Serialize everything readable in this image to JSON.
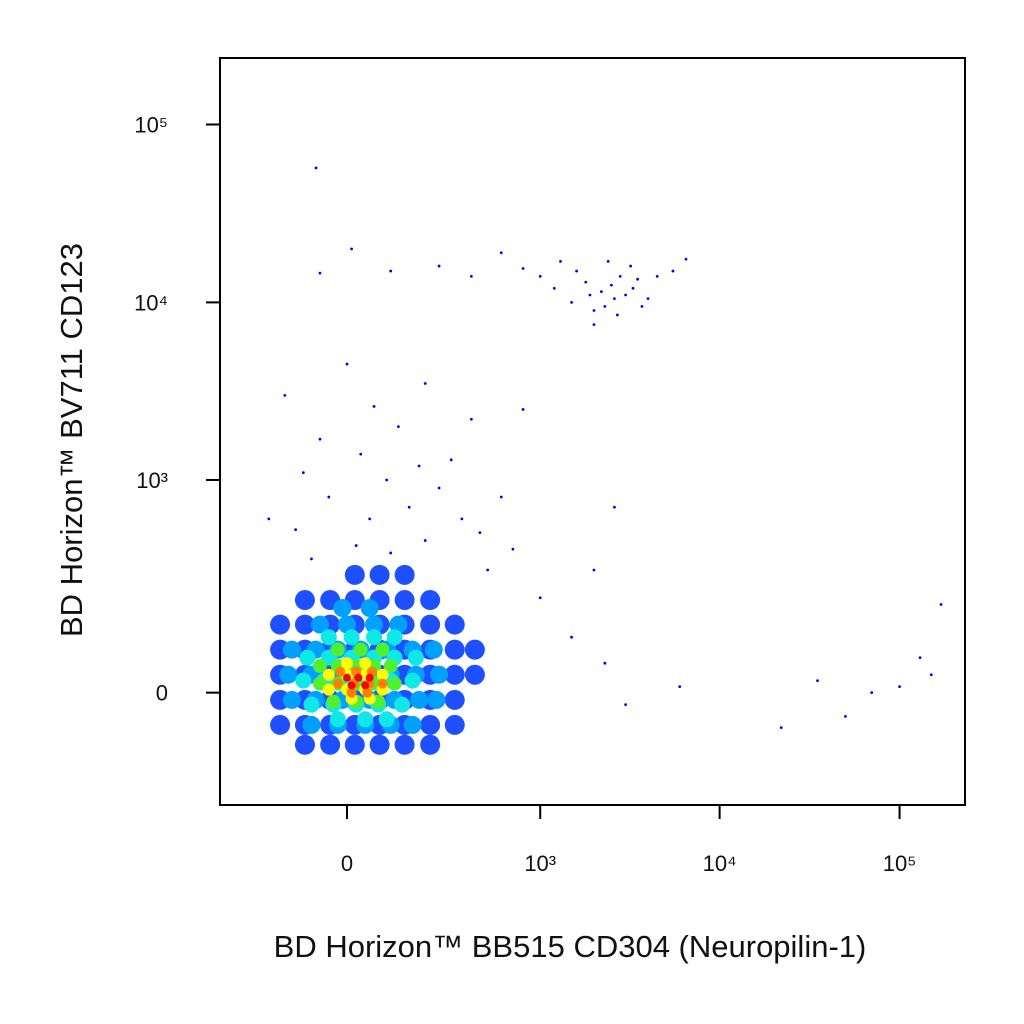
{
  "chart_data": {
    "type": "scatter",
    "x_label": "BD Horizon™ BB515 CD304 (Neuropilin-1)",
    "y_label": "BD Horizon™ BV711 CD123",
    "xscale": "biexponential",
    "yscale": "biexponential",
    "xlim": [
      -415,
      231000
    ],
    "ylim": [
      -259,
      236500
    ],
    "xticks": [
      0,
      {
        "value": 1000,
        "label": "10³"
      },
      {
        "value": 10000,
        "label": "10⁴"
      },
      {
        "value": 100000,
        "label": "10⁵"
      }
    ],
    "yticks": [
      0,
      {
        "value": 1000,
        "label": "10³"
      },
      {
        "value": 10000,
        "label": "10⁴"
      },
      {
        "value": 100000,
        "label": "10⁵"
      }
    ],
    "series": [
      {
        "color": "#0000ff",
        "x": [
          -80,
          20,
          100,
          200,
          -120,
          50,
          150,
          -40,
          250,
          90,
          -100,
          180,
          30,
          300,
          -60,
          120,
          60,
          -150,
          200,
          0,
          350,
          450,
          600,
          -200,
          500,
          700,
          400,
          800,
          -60,
          10,
          100,
          250,
          400,
          600,
          800,
          1000,
          1300,
          1500,
          1800,
          2000,
          2200,
          2500,
          2700,
          3000,
          3500,
          4000,
          1600,
          2400,
          3200,
          4500,
          5500,
          2000,
          2800,
          3700,
          6500,
          1200,
          2600,
          1900,
          2300,
          3300,
          -69,
          1000,
          1500,
          2300,
          3000,
          6000,
          2000,
          35000,
          50000,
          70000,
          100000,
          150000,
          170000,
          22000,
          130000,
          2600
        ],
        "y": [
          350,
          420,
          380,
          450,
          520,
          600,
          700,
          800,
          900,
          1000,
          1100,
          1200,
          1400,
          1300,
          1700,
          2000,
          2600,
          3000,
          3500,
          4500,
          600,
          500,
          800,
          600,
          300,
          400,
          2200,
          2500,
          14600,
          20000,
          15000,
          16000,
          14000,
          19000,
          15500,
          14000,
          17000,
          10000,
          13000,
          9000,
          11500,
          12500,
          8500,
          11000,
          13500,
          10500,
          15000,
          17000,
          16000,
          14000,
          15000,
          7500,
          14000,
          9500,
          17500,
          12000,
          10500,
          11000,
          9500,
          12000,
          57000,
          200,
          100,
          50,
          -20,
          10,
          300,
          20,
          -40,
          0,
          10,
          30,
          180,
          -60,
          60,
          700
        ]
      },
      {
        "color": "#1e50ff",
        "x": [
          17,
          73,
          137,
          -96,
          -37,
          17,
          73,
          137,
          217,
          -164,
          -96,
          -37,
          17,
          73,
          137,
          217,
          316,
          -164,
          -96,
          -37,
          17,
          73,
          137,
          217,
          316,
          420,
          -164,
          -96,
          -37,
          17,
          73,
          137,
          217,
          316,
          420,
          -164,
          -96,
          -37,
          17,
          73,
          137,
          217,
          316,
          -164,
          -96,
          -37,
          17,
          73,
          137,
          217,
          316,
          -96,
          -37,
          17,
          73,
          137,
          217
        ],
        "y": [
          280,
          280,
          280,
          193,
          193,
          193,
          193,
          193,
          193,
          128,
          128,
          128,
          128,
          128,
          128,
          128,
          128,
          75,
          75,
          75,
          75,
          75,
          75,
          75,
          75,
          75,
          30,
          30,
          30,
          30,
          30,
          30,
          30,
          30,
          30,
          -12,
          -12,
          -12,
          -12,
          -12,
          -12,
          -12,
          -12,
          -55,
          -55,
          -55,
          -55,
          -55,
          -55,
          -55,
          -55,
          -93,
          -93,
          -93,
          -93,
          -93,
          -93
        ]
      },
      {
        "color": "#00a0ff",
        "x": [
          -10,
          50,
          -60,
          0,
          60,
          120,
          -130,
          -70,
          -20,
          30,
          90,
          160,
          230,
          -140,
          -80,
          -20,
          40,
          100,
          170,
          250,
          -130,
          -70,
          -10,
          50,
          110,
          180,
          240,
          -80,
          -20,
          40,
          100,
          160
        ],
        "y": [
          170,
          170,
          128,
          128,
          128,
          128,
          75,
          75,
          75,
          75,
          75,
          75,
          75,
          30,
          30,
          30,
          30,
          30,
          30,
          30,
          -12,
          -12,
          -12,
          -12,
          -12,
          -12,
          -12,
          -55,
          -55,
          -55,
          -55,
          -55
        ]
      },
      {
        "color": "#10e8e8",
        "x": [
          -40,
          10,
          60,
          110,
          -90,
          -40,
          10,
          60,
          110,
          170,
          -100,
          -50,
          0,
          50,
          100,
          160,
          -80,
          -30,
          20,
          70,
          130,
          -20,
          40,
          90
        ],
        "y": [
          100,
          100,
          100,
          100,
          60,
          60,
          60,
          60,
          60,
          60,
          20,
          20,
          20,
          20,
          20,
          20,
          -20,
          -20,
          -20,
          -20,
          -20,
          -45,
          -45,
          -45
        ]
      },
      {
        "color": "#50f030",
        "x": [
          -20,
          30,
          80,
          -60,
          -20,
          20,
          60,
          100,
          -60,
          -20,
          20,
          60,
          110,
          -30,
          20,
          70
        ],
        "y": [
          75,
          75,
          75,
          45,
          45,
          45,
          45,
          45,
          15,
          15,
          15,
          15,
          15,
          -15,
          -15,
          -15
        ]
      },
      {
        "color": "#ffff00",
        "x": [
          0,
          40,
          -40,
          0,
          40,
          80,
          -40,
          0,
          40,
          80,
          10,
          50
        ],
        "y": [
          50,
          50,
          30,
          30,
          30,
          30,
          5,
          5,
          5,
          5,
          -10,
          -10
        ]
      },
      {
        "color": "#ff8000",
        "x": [
          -15,
          20,
          55,
          -20,
          15,
          50,
          80,
          10,
          45
        ],
        "y": [
          35,
          35,
          35,
          15,
          15,
          15,
          15,
          0,
          0
        ]
      },
      {
        "color": "#ff0000",
        "x": [
          0,
          25,
          50,
          10,
          40
        ],
        "y": [
          25,
          25,
          25,
          12,
          12
        ]
      }
    ]
  }
}
